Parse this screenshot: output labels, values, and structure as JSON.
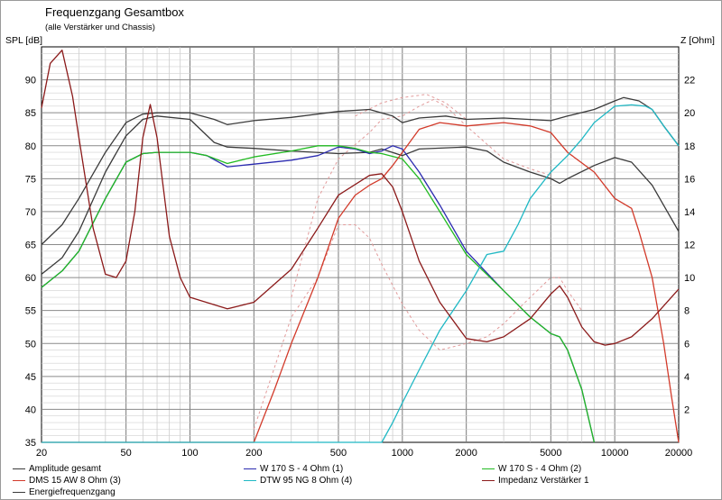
{
  "header": {
    "title": "Frequenzgang Gesamtbox",
    "subtitle": "(alle Verstärker und Chassis)",
    "ylabel_left": "SPL [dB]",
    "ylabel_right": "Z [Ohm]"
  },
  "legend": [
    {
      "label": "Amplitude gesamt",
      "color": "#3a3a3a"
    },
    {
      "label": "W 170 S - 4 Ohm (1)",
      "color": "#2b2bb0"
    },
    {
      "label": "W 170 S - 4 Ohm (2)",
      "color": "#22bb22"
    },
    {
      "label": "DMS 15 AW 8 Ohm (3)",
      "color": "#d23a2a"
    },
    {
      "label": "DTW 95 NG 8 Ohm (4)",
      "color": "#1fb8c4"
    },
    {
      "label": "Impedanz Verstärker 1",
      "color": "#8b1a1a"
    },
    {
      "label": "Energiefrequenzgang",
      "color": "#3a3a3a"
    }
  ],
  "chart_data": {
    "type": "line",
    "title": "Frequenzgang Gesamtbox",
    "subtitle": "(alle Verstärker und Chassis)",
    "xscale": "log",
    "xlim": [
      20,
      20000
    ],
    "xticks": [
      20,
      50,
      100,
      200,
      500,
      1000,
      2000,
      5000,
      10000,
      20000
    ],
    "ylim_left": [
      35,
      95
    ],
    "yticks_left": [
      35,
      40,
      45,
      50,
      55,
      60,
      65,
      70,
      75,
      80,
      85,
      90
    ],
    "ylim_right": [
      0,
      24
    ],
    "yticks_right": [
      2,
      4,
      6,
      8,
      10,
      12,
      14,
      16,
      18,
      20,
      22
    ],
    "ylabel_left": "SPL [dB]",
    "ylabel_right": "Z [Ohm]",
    "grid": true,
    "series": [
      {
        "name": "Amplitude gesamt",
        "axis": "left",
        "color": "#3a3a3a",
        "points": [
          [
            20,
            65
          ],
          [
            25,
            68
          ],
          [
            30,
            72
          ],
          [
            40,
            79
          ],
          [
            50,
            83.5
          ],
          [
            60,
            84.8
          ],
          [
            70,
            85
          ],
          [
            100,
            85
          ],
          [
            130,
            84
          ],
          [
            150,
            83.2
          ],
          [
            200,
            83.8
          ],
          [
            300,
            84.3
          ],
          [
            500,
            85.2
          ],
          [
            700,
            85.5
          ],
          [
            900,
            84.5
          ],
          [
            1000,
            83.5
          ],
          [
            1200,
            84.2
          ],
          [
            1600,
            84.5
          ],
          [
            2000,
            84
          ],
          [
            3000,
            84.2
          ],
          [
            5000,
            83.8
          ],
          [
            6000,
            84.5
          ],
          [
            8000,
            85.5
          ],
          [
            10000,
            86.8
          ],
          [
            11000,
            87.3
          ],
          [
            13000,
            86.8
          ],
          [
            15000,
            85.5
          ],
          [
            17000,
            83
          ],
          [
            20000,
            80
          ]
        ]
      },
      {
        "name": "Energiefrequenzgang",
        "axis": "left",
        "color": "#3a3a3a",
        "points": [
          [
            20,
            60.5
          ],
          [
            25,
            63
          ],
          [
            30,
            67
          ],
          [
            40,
            76
          ],
          [
            50,
            81.5
          ],
          [
            60,
            84
          ],
          [
            70,
            84.5
          ],
          [
            100,
            84
          ],
          [
            130,
            80.5
          ],
          [
            150,
            79.8
          ],
          [
            200,
            79.6
          ],
          [
            300,
            79.2
          ],
          [
            500,
            78.8
          ],
          [
            700,
            79
          ],
          [
            800,
            79.5
          ],
          [
            1000,
            78.5
          ],
          [
            1200,
            79.5
          ],
          [
            2000,
            79.8
          ],
          [
            2500,
            79.2
          ],
          [
            3000,
            77.5
          ],
          [
            4000,
            76
          ],
          [
            5000,
            75
          ],
          [
            5500,
            74.3
          ],
          [
            6000,
            75
          ],
          [
            8000,
            77
          ],
          [
            10000,
            78.2
          ],
          [
            12000,
            77.5
          ],
          [
            15000,
            74
          ],
          [
            20000,
            67
          ]
        ]
      },
      {
        "name": "W 170 S - 4 Ohm (1)",
        "axis": "left",
        "color": "#2b2bb0",
        "points": [
          [
            20,
            58.5
          ],
          [
            25,
            61
          ],
          [
            30,
            64
          ],
          [
            40,
            72
          ],
          [
            50,
            77.5
          ],
          [
            60,
            78.8
          ],
          [
            70,
            79
          ],
          [
            100,
            79
          ],
          [
            120,
            78.5
          ],
          [
            150,
            76.8
          ],
          [
            200,
            77.2
          ],
          [
            300,
            77.8
          ],
          [
            400,
            78.5
          ],
          [
            500,
            79.8
          ],
          [
            600,
            79.5
          ],
          [
            700,
            78.8
          ],
          [
            800,
            79.2
          ],
          [
            900,
            80
          ],
          [
            1000,
            79.5
          ],
          [
            1200,
            76
          ],
          [
            1500,
            71
          ],
          [
            2000,
            64
          ],
          [
            3000,
            58
          ],
          [
            4000,
            54
          ],
          [
            5000,
            51.5
          ],
          [
            5500,
            51
          ],
          [
            6000,
            49
          ],
          [
            7000,
            43
          ],
          [
            8000,
            35
          ]
        ]
      },
      {
        "name": "W 170 S - 4 Ohm (2)",
        "axis": "left",
        "color": "#22bb22",
        "points": [
          [
            20,
            58.5
          ],
          [
            25,
            61
          ],
          [
            30,
            64
          ],
          [
            40,
            72
          ],
          [
            50,
            77.5
          ],
          [
            60,
            78.8
          ],
          [
            70,
            79
          ],
          [
            100,
            79
          ],
          [
            120,
            78.5
          ],
          [
            150,
            77.3
          ],
          [
            200,
            78.3
          ],
          [
            300,
            79.2
          ],
          [
            400,
            80
          ],
          [
            500,
            80
          ],
          [
            600,
            79.6
          ],
          [
            700,
            79
          ],
          [
            800,
            78.8
          ],
          [
            1000,
            78
          ],
          [
            1200,
            75
          ],
          [
            1500,
            70
          ],
          [
            2000,
            63.5
          ],
          [
            3000,
            58
          ],
          [
            4000,
            54
          ],
          [
            5000,
            51.5
          ],
          [
            5500,
            51
          ],
          [
            6000,
            49
          ],
          [
            7000,
            43
          ],
          [
            8000,
            35
          ]
        ]
      },
      {
        "name": "DMS 15 AW 8 Ohm (3)",
        "axis": "left",
        "color": "#d23a2a",
        "points": [
          [
            20,
            35
          ],
          [
            200,
            35
          ],
          [
            250,
            43
          ],
          [
            300,
            50
          ],
          [
            400,
            60
          ],
          [
            500,
            69
          ],
          [
            600,
            72.5
          ],
          [
            700,
            74
          ],
          [
            800,
            75
          ],
          [
            900,
            77
          ],
          [
            1000,
            79
          ],
          [
            1200,
            82.5
          ],
          [
            1500,
            83.5
          ],
          [
            2000,
            83
          ],
          [
            3000,
            83.5
          ],
          [
            4000,
            83
          ],
          [
            5000,
            82
          ],
          [
            6000,
            79
          ],
          [
            8000,
            76
          ],
          [
            10000,
            72
          ],
          [
            12000,
            70.5
          ],
          [
            13000,
            67
          ],
          [
            15000,
            60
          ],
          [
            17000,
            50
          ],
          [
            18500,
            42
          ],
          [
            20000,
            35
          ]
        ]
      },
      {
        "name": "DTW 95 NG 8 Ohm (4)",
        "axis": "left",
        "color": "#1fb8c4",
        "points": [
          [
            20,
            35
          ],
          [
            800,
            35
          ],
          [
            900,
            38
          ],
          [
            1000,
            41
          ],
          [
            1200,
            46
          ],
          [
            1500,
            52
          ],
          [
            2000,
            58
          ],
          [
            2500,
            63.5
          ],
          [
            3000,
            64
          ],
          [
            3500,
            68
          ],
          [
            4000,
            72
          ],
          [
            5000,
            76
          ],
          [
            6000,
            78.5
          ],
          [
            7000,
            81
          ],
          [
            8000,
            83.5
          ],
          [
            10000,
            86
          ],
          [
            12000,
            86.2
          ],
          [
            14000,
            86
          ],
          [
            15000,
            85.5
          ],
          [
            17000,
            83
          ],
          [
            20000,
            80
          ]
        ]
      },
      {
        "name": "Impedanz Verstärker 1",
        "axis": "right",
        "color": "#8b1a1a",
        "points": [
          [
            20,
            20.3
          ],
          [
            22,
            23
          ],
          [
            25,
            23.8
          ],
          [
            28,
            21
          ],
          [
            30,
            18.5
          ],
          [
            35,
            13
          ],
          [
            40,
            10.2
          ],
          [
            45,
            10
          ],
          [
            50,
            11
          ],
          [
            55,
            14
          ],
          [
            60,
            18.5
          ],
          [
            65,
            20.5
          ],
          [
            70,
            18.5
          ],
          [
            80,
            12.5
          ],
          [
            90,
            10
          ],
          [
            100,
            8.8
          ],
          [
            150,
            8.1
          ],
          [
            200,
            8.5
          ],
          [
            300,
            10.5
          ],
          [
            400,
            13
          ],
          [
            500,
            15
          ],
          [
            700,
            16.2
          ],
          [
            800,
            16.3
          ],
          [
            900,
            15.5
          ],
          [
            1000,
            14
          ],
          [
            1200,
            11
          ],
          [
            1500,
            8.5
          ],
          [
            2000,
            6.3
          ],
          [
            2500,
            6.1
          ],
          [
            3000,
            6.4
          ],
          [
            4000,
            7.5
          ],
          [
            5000,
            9
          ],
          [
            5500,
            9.5
          ],
          [
            6000,
            8.8
          ],
          [
            7000,
            7
          ],
          [
            8000,
            6.1
          ],
          [
            9000,
            5.9
          ],
          [
            10000,
            6
          ],
          [
            12000,
            6.4
          ],
          [
            15000,
            7.5
          ],
          [
            20000,
            9.3
          ]
        ]
      }
    ]
  }
}
